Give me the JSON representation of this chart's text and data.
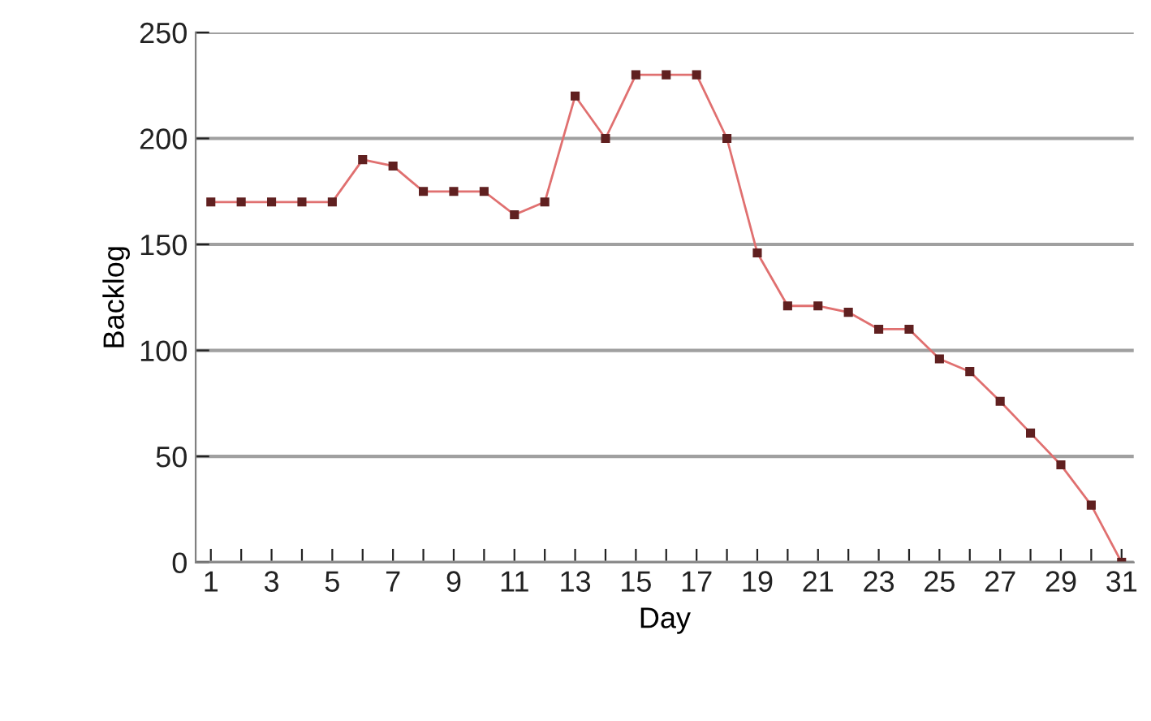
{
  "chart_data": {
    "type": "line",
    "xlabel": "Day",
    "ylabel": "Backlog",
    "categories": [
      "1",
      null,
      "3",
      null,
      "5",
      null,
      "7",
      null,
      "9",
      null,
      "11",
      null,
      "13",
      null,
      "15",
      null,
      "17",
      null,
      "19",
      null,
      "21",
      null,
      "23",
      null,
      "25",
      null,
      "27",
      null,
      "29",
      null,
      "31"
    ],
    "series": [
      {
        "color": "#e07070",
        "values": [
          170,
          170,
          170,
          170,
          170,
          190,
          187,
          175,
          175,
          175,
          164,
          170,
          220,
          200,
          230,
          230,
          230,
          200,
          146,
          121,
          121,
          118,
          110,
          110,
          96,
          90,
          76,
          61,
          46,
          27,
          0
        ]
      }
    ],
    "ylim": [
      0,
      250
    ],
    "yticks": [
      0,
      50,
      100,
      150,
      200,
      250
    ],
    "grid": "y",
    "marker": "square",
    "line_style": "solid"
  }
}
